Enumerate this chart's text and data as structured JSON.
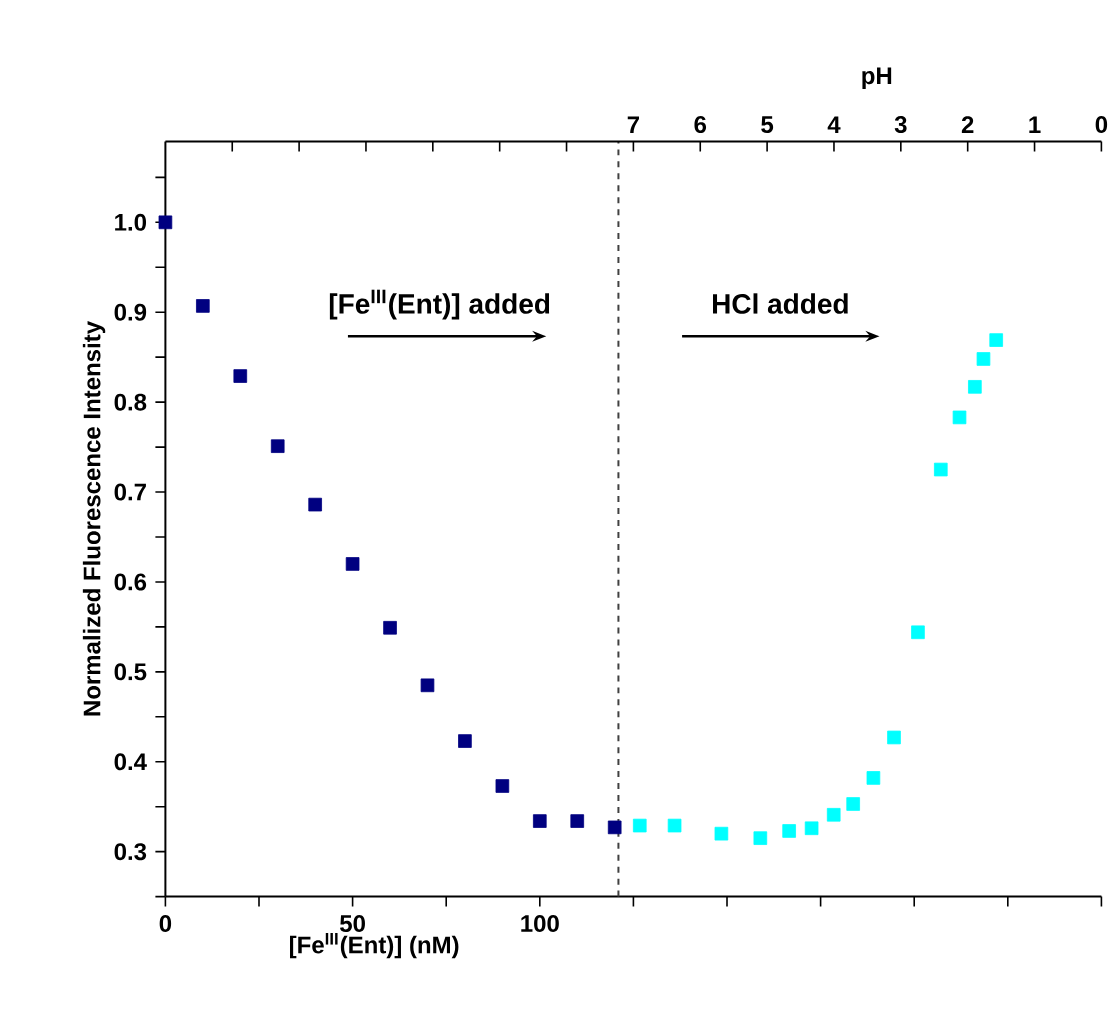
{
  "chart_data": {
    "type": "scatter",
    "xlabel": "[Fe$^{III}$(Ent)] (nM)",
    "ylabel": "Normalized Fluorescence Intensity",
    "x2label": "pH",
    "xlim": [
      0,
      250
    ],
    "xticks": [
      0,
      {
        "value": 25,
        "label": null
      },
      50,
      {
        "value": 75,
        "label": null
      },
      100,
      {
        "value": 125,
        "label": null
      },
      {
        "value": 150,
        "label": null
      },
      {
        "value": 175,
        "label": null
      },
      {
        "value": 200,
        "label": null
      },
      {
        "value": 225,
        "label": null
      },
      {
        "value": 250,
        "label": null
      }
    ],
    "x2lim": [
      14,
      0
    ],
    "x2ticks": [
      {
        "value": 13,
        "label": null
      },
      {
        "value": 12,
        "label": null
      },
      {
        "value": 11,
        "label": null
      },
      {
        "value": 10,
        "label": null
      },
      {
        "value": 9,
        "label": null
      },
      {
        "value": 8,
        "label": null
      },
      7,
      6,
      5,
      4,
      3,
      2,
      1,
      0
    ],
    "ylim": [
      0.25,
      1.09
    ],
    "yticks": [
      {
        "value": 0.25,
        "label": null
      },
      0.3,
      {
        "value": 0.35,
        "label": null
      },
      0.4,
      {
        "value": 0.45,
        "label": null
      },
      0.5,
      {
        "value": 0.55,
        "label": null
      },
      0.6,
      {
        "value": 0.65,
        "label": null
      },
      0.7,
      {
        "value": 0.75,
        "label": null
      },
      0.8,
      {
        "value": 0.85,
        "label": null
      },
      0.9,
      {
        "value": 0.95,
        "label": null
      },
      {
        "value": 1.0,
        "label": "1.0"
      },
      {
        "value": 1.05,
        "label": null
      }
    ],
    "marker": "square",
    "series": [
      {
        "color": "#000080",
        "x": [
          0,
          10,
          20,
          30,
          40,
          50,
          60,
          70,
          80,
          90,
          100,
          110,
          120
        ],
        "values": [
          1.0,
          0.907,
          0.829,
          0.751,
          0.686,
          0.62,
          0.549,
          0.485,
          0.423,
          0.373,
          0.334,
          0.334,
          0.327
        ]
      },
      {
        "color": "#00ffff",
        "x": [
          126.7,
          136,
          148.5,
          158.9,
          166.6,
          172.6,
          178.5,
          183.7,
          189.1,
          194.6,
          201,
          207.1,
          212.1,
          216.2,
          218.5,
          221.9
        ],
        "values": [
          0.329,
          0.329,
          0.32,
          0.315,
          0.323,
          0.326,
          0.341,
          0.353,
          0.382,
          0.427,
          0.544,
          0.725,
          0.783,
          0.817,
          0.848,
          0.869
        ]
      }
    ],
    "ref_lines": [
      {
        "axis": "x",
        "value": 121,
        "color": "#404040",
        "line_style": "dashed"
      }
    ],
    "annotations": [
      "[Fe$^{III}$(Ent)] added",
      "HCl added"
    ]
  }
}
